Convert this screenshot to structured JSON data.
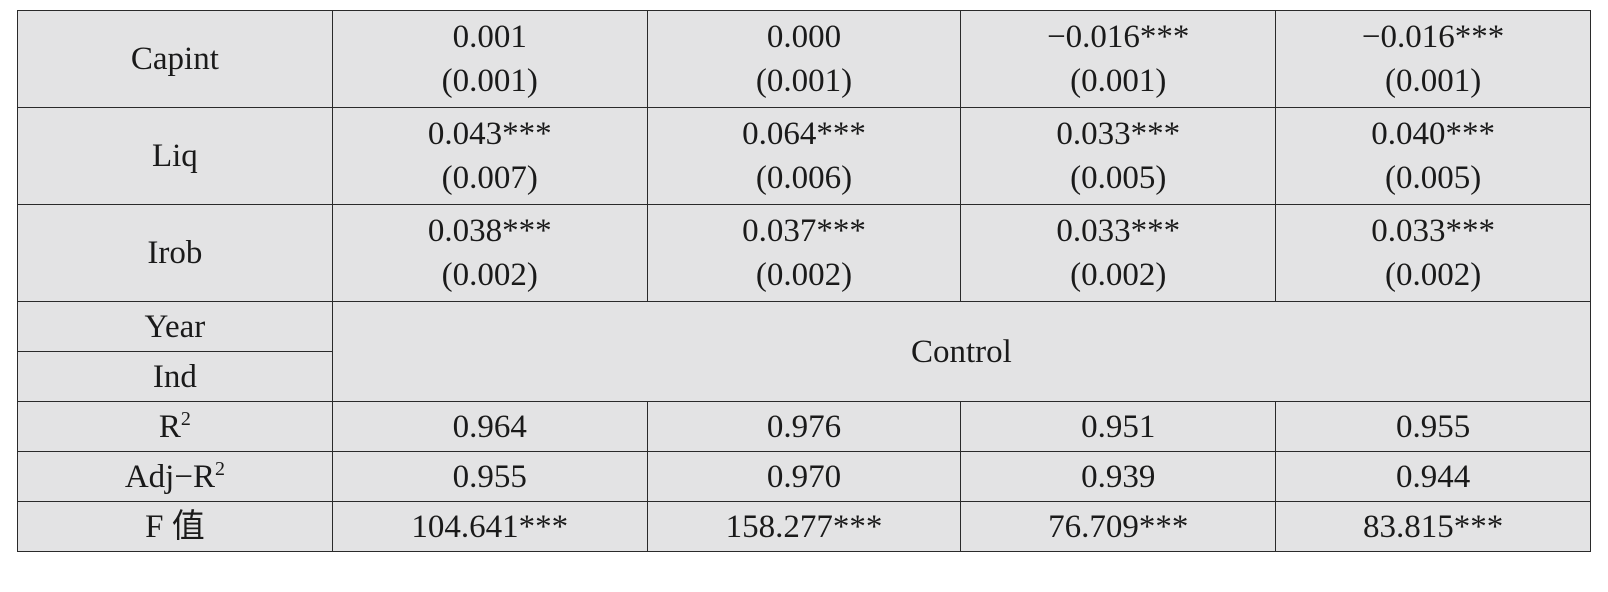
{
  "rows": [
    {
      "label": "Capint",
      "cells": [
        {
          "coef": "0.001",
          "se": "(0.001)"
        },
        {
          "coef": "0.000",
          "se": "(0.001)"
        },
        {
          "coef": "−0.016***",
          "se": "(0.001)"
        },
        {
          "coef": "−0.016***",
          "se": "(0.001)"
        }
      ]
    },
    {
      "label": "Liq",
      "cells": [
        {
          "coef": "0.043***",
          "se": "(0.007)"
        },
        {
          "coef": "0.064***",
          "se": "(0.006)"
        },
        {
          "coef": "0.033***",
          "se": "(0.005)"
        },
        {
          "coef": "0.040***",
          "se": "(0.005)"
        }
      ]
    },
    {
      "label": "Irob",
      "cells": [
        {
          "coef": "0.038***",
          "se": "(0.002)"
        },
        {
          "coef": "0.037***",
          "se": "(0.002)"
        },
        {
          "coef": "0.033***",
          "se": "(0.002)"
        },
        {
          "coef": "0.033***",
          "se": "(0.002)"
        }
      ]
    }
  ],
  "controls": {
    "year_label": "Year",
    "ind_label": "Ind",
    "value": "Control"
  },
  "stats": {
    "r2": {
      "label_base": "R",
      "label_sup": "2",
      "values": [
        "0.964",
        "0.976",
        "0.951",
        "0.955"
      ]
    },
    "adj_r2": {
      "label_base": "Adj−R",
      "label_sup": "2",
      "values": [
        "0.955",
        "0.970",
        "0.939",
        "0.944"
      ]
    },
    "f": {
      "label": "F 值",
      "values": [
        "104.641***",
        "158.277***",
        "76.709***",
        "83.815***"
      ]
    }
  }
}
